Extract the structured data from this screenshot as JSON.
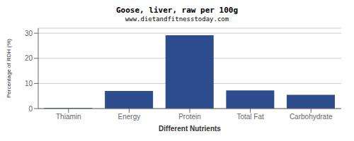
{
  "chart_data": {
    "type": "bar",
    "title": "Goose, liver, raw per 100g",
    "subtitle": "www.dietandfitnesstoday.com",
    "categories": [
      "Thiamin",
      "Energy",
      "Protein",
      "Total Fat",
      "Carbohydrate"
    ],
    "values": [
      0.3,
      7.0,
      29.2,
      7.2,
      5.5
    ],
    "color": "#2e4d8e",
    "xlabel": "Different Nutrients",
    "ylabel": "Percentage of RDH (%)",
    "ylim": [
      0,
      32
    ],
    "yticks": [
      0,
      10,
      20,
      30
    ],
    "grid": true
  }
}
